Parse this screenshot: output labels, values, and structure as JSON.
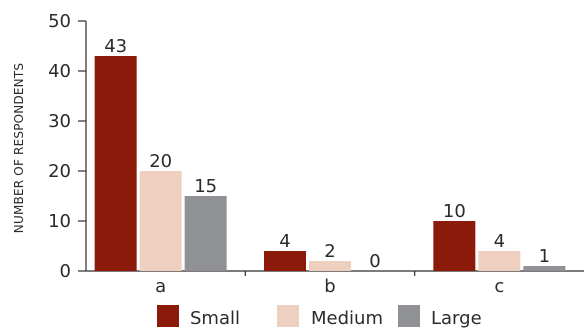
{
  "chart_data": {
    "type": "bar",
    "ylabel": "NUMBER OF RESPONDENTS",
    "ylim": [
      0,
      50
    ],
    "yticks": [
      0,
      10,
      20,
      30,
      40,
      50
    ],
    "categories": [
      "a",
      "b",
      "c"
    ],
    "series": [
      {
        "name": "Small",
        "color": "#8b1a0a",
        "values": [
          43,
          4,
          10
        ]
      },
      {
        "name": "Medium",
        "color": "#efcfbf",
        "values": [
          20,
          2,
          4
        ]
      },
      {
        "name": "Large",
        "color": "#8f9194",
        "values": [
          15,
          0,
          1
        ]
      }
    ],
    "data_labels": true,
    "grid": false,
    "legend_position": "bottom"
  }
}
